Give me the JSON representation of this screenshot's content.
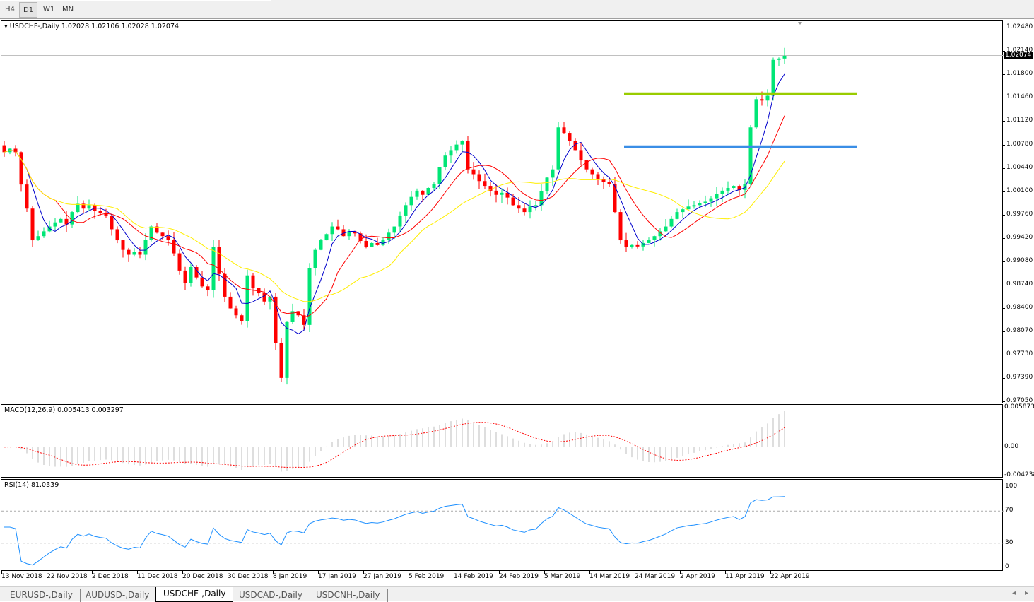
{
  "toolbar": {
    "timeframes": [
      "H4",
      "D1",
      "W1",
      "MN"
    ],
    "active": "D1"
  },
  "main": {
    "label": "USDCHF-,Daily  1.02028 1.02106 1.02028 1.02074",
    "current_price": "1.02074",
    "price_ticks": [
      "1.02480",
      "1.02140",
      "1.01800",
      "1.01460",
      "1.01120",
      "1.00780",
      "1.00440",
      "1.00100",
      "0.99760",
      "0.99420",
      "0.99080",
      "0.98740",
      "0.98400",
      "0.98070",
      "0.97730",
      "0.97390",
      "0.97050"
    ],
    "hlines": [
      {
        "price": 1.0152,
        "color": "#99cc00"
      },
      {
        "price": 1.0075,
        "color": "#3a8ee6"
      }
    ]
  },
  "macd": {
    "label": "MACD(12,26,9) 0.005413 0.003297",
    "ticks": [
      "0.005873",
      "0.00",
      "-0.004238"
    ]
  },
  "rsi": {
    "label": "RSI(14) 81.0339",
    "ticks": [
      "100",
      "70",
      "30",
      "0"
    ]
  },
  "chart_data": {
    "type": "candlestick",
    "symbol": "USDCHF-",
    "timeframe": "Daily",
    "bull_color": "#00e676",
    "bear_color": "#ff0000",
    "ma_colors": [
      "#0000cc",
      "#ff0000",
      "#ffee00"
    ],
    "date_labels": [
      "13 Nov 2018",
      "22 Nov 2018",
      "2 Dec 2018",
      "11 Dec 2018",
      "20 Dec 2018",
      "30 Dec 2018",
      "8 Jan 2019",
      "17 Jan 2019",
      "27 Jan 2019",
      "5 Feb 2019",
      "14 Feb 2019",
      "24 Feb 2019",
      "5 Mar 2019",
      "14 Mar 2019",
      "24 Mar 2019",
      "2 Apr 2019",
      "11 Apr 2019",
      "22 Apr 2019"
    ],
    "ylim": [
      0.9705,
      1.0248
    ],
    "closes": [
      1.0067,
      1.0072,
      1.0067,
      1.002,
      0.9985,
      0.9939,
      0.9945,
      0.9952,
      0.9959,
      0.9965,
      0.997,
      0.9962,
      0.998,
      0.9992,
      0.9985,
      0.999,
      0.9982,
      0.9978,
      0.9975,
      0.9955,
      0.9939,
      0.9925,
      0.9918,
      0.9922,
      0.9918,
      0.994,
      0.9959,
      0.995,
      0.9945,
      0.9939,
      0.992,
      0.9895,
      0.9877,
      0.99,
      0.9885,
      0.9872,
      0.9867,
      0.9929,
      0.989,
      0.9857,
      0.984,
      0.983,
      0.9821,
      0.9888,
      0.987,
      0.9862,
      0.985,
      0.9857,
      0.979,
      0.9739,
      0.982,
      0.9836,
      0.983,
      0.9816,
      0.9898,
      0.9925,
      0.9939,
      0.9948,
      0.9959,
      0.9955,
      0.9945,
      0.9952,
      0.9949,
      0.9938,
      0.9929,
      0.9935,
      0.9932,
      0.9939,
      0.995,
      0.9959,
      0.9975,
      0.999,
      1.0002,
      1.0011,
      1.0005,
      1.0015,
      1.0021,
      1.0045,
      1.0062,
      1.007,
      1.0078,
      1.0083,
      1.0042,
      1.0035,
      1.0025,
      1.0018,
      1.0011,
      1.0005,
      1.0008,
      1.0001,
      0.999,
      0.9985,
      0.998,
      0.9988,
      0.999,
      1.001,
      1.003,
      1.0042,
      1.0103,
      1.0095,
      1.0083,
      1.007,
      1.0055,
      1.0042,
      1.0035,
      1.0028,
      1.0024,
      1.0021,
      0.998,
      0.9939,
      0.9929,
      0.9932,
      0.993,
      0.9935,
      0.9939,
      0.9945,
      0.9952,
      0.9959,
      0.997,
      0.998,
      0.9984,
      0.9988,
      0.999,
      0.9993,
      0.9995,
      1.0,
      1.0006,
      1.0011,
      1.0015,
      1.0018,
      1.0012,
      1.0021,
      1.0103,
      1.0144,
      1.0142,
      1.0149,
      1.0201,
      1.0203,
      1.0207
    ]
  },
  "tabs": [
    "EURUSD-,Daily",
    "AUDUSD-,Daily",
    "USDCHF-,Daily",
    "USDCAD-,Daily",
    "USDCNH-,Daily"
  ],
  "active_tab": "USDCHF-,Daily"
}
